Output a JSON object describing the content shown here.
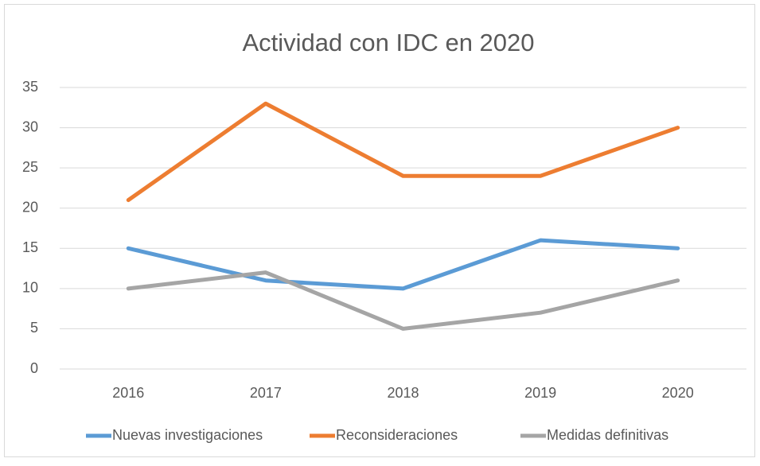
{
  "chart_data": {
    "type": "line",
    "title": "Actividad con IDC en 2020",
    "categories": [
      "2016",
      "2017",
      "2018",
      "2019",
      "2020"
    ],
    "series": [
      {
        "name": "Nuevas investigaciones",
        "color": "#5b9bd5",
        "values": [
          15,
          11,
          10,
          16,
          15
        ]
      },
      {
        "name": "Reconsideraciones",
        "color": "#ed7d31",
        "values": [
          21,
          33,
          24,
          24,
          30
        ]
      },
      {
        "name": "Medidas definitivas",
        "color": "#a5a5a5",
        "values": [
          10,
          12,
          5,
          7,
          11
        ]
      }
    ],
    "ylim": [
      0,
      35
    ],
    "yticks": [
      0,
      5,
      10,
      15,
      20,
      25,
      30,
      35
    ],
    "grid": true,
    "legend": "bottom"
  }
}
